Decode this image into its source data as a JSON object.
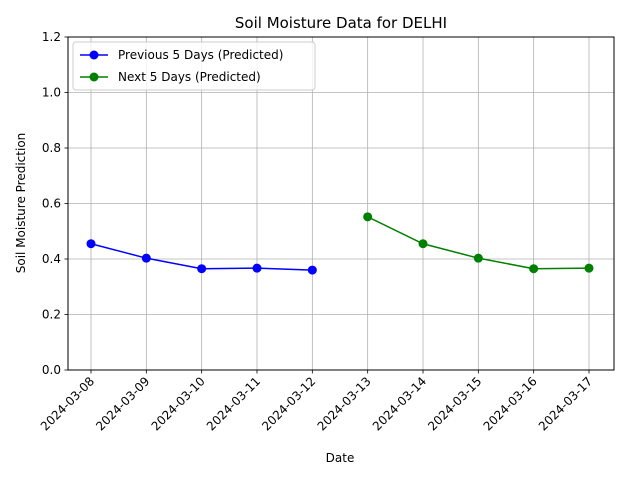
{
  "chart_data": {
    "type": "line",
    "title": "Soil Moisture Data for DELHI",
    "xlabel": "Date",
    "ylabel": "Soil Moisture Prediction",
    "categories": [
      "2024-03-08",
      "2024-03-09",
      "2024-03-10",
      "2024-03-11",
      "2024-03-12",
      "2024-03-13",
      "2024-03-14",
      "2024-03-15",
      "2024-03-16",
      "2024-03-17"
    ],
    "ylim": [
      0,
      1.2
    ],
    "yticks": [
      "0.0",
      "0.2",
      "0.4",
      "0.6",
      "0.8",
      "1.0",
      "1.2"
    ],
    "grid": true,
    "legend_position": "top-left",
    "series": [
      {
        "name": "Previous 5 Days (Predicted)",
        "color": "#0000ff",
        "x": [
          "2024-03-08",
          "2024-03-09",
          "2024-03-10",
          "2024-03-11",
          "2024-03-12"
        ],
        "values": [
          0.455,
          0.403,
          0.365,
          0.367,
          0.36
        ]
      },
      {
        "name": "Next 5 Days (Predicted)",
        "color": "#008000",
        "x": [
          "2024-03-13",
          "2024-03-14",
          "2024-03-15",
          "2024-03-16",
          "2024-03-17"
        ],
        "values": [
          0.552,
          0.455,
          0.403,
          0.365,
          0.367
        ]
      }
    ]
  }
}
